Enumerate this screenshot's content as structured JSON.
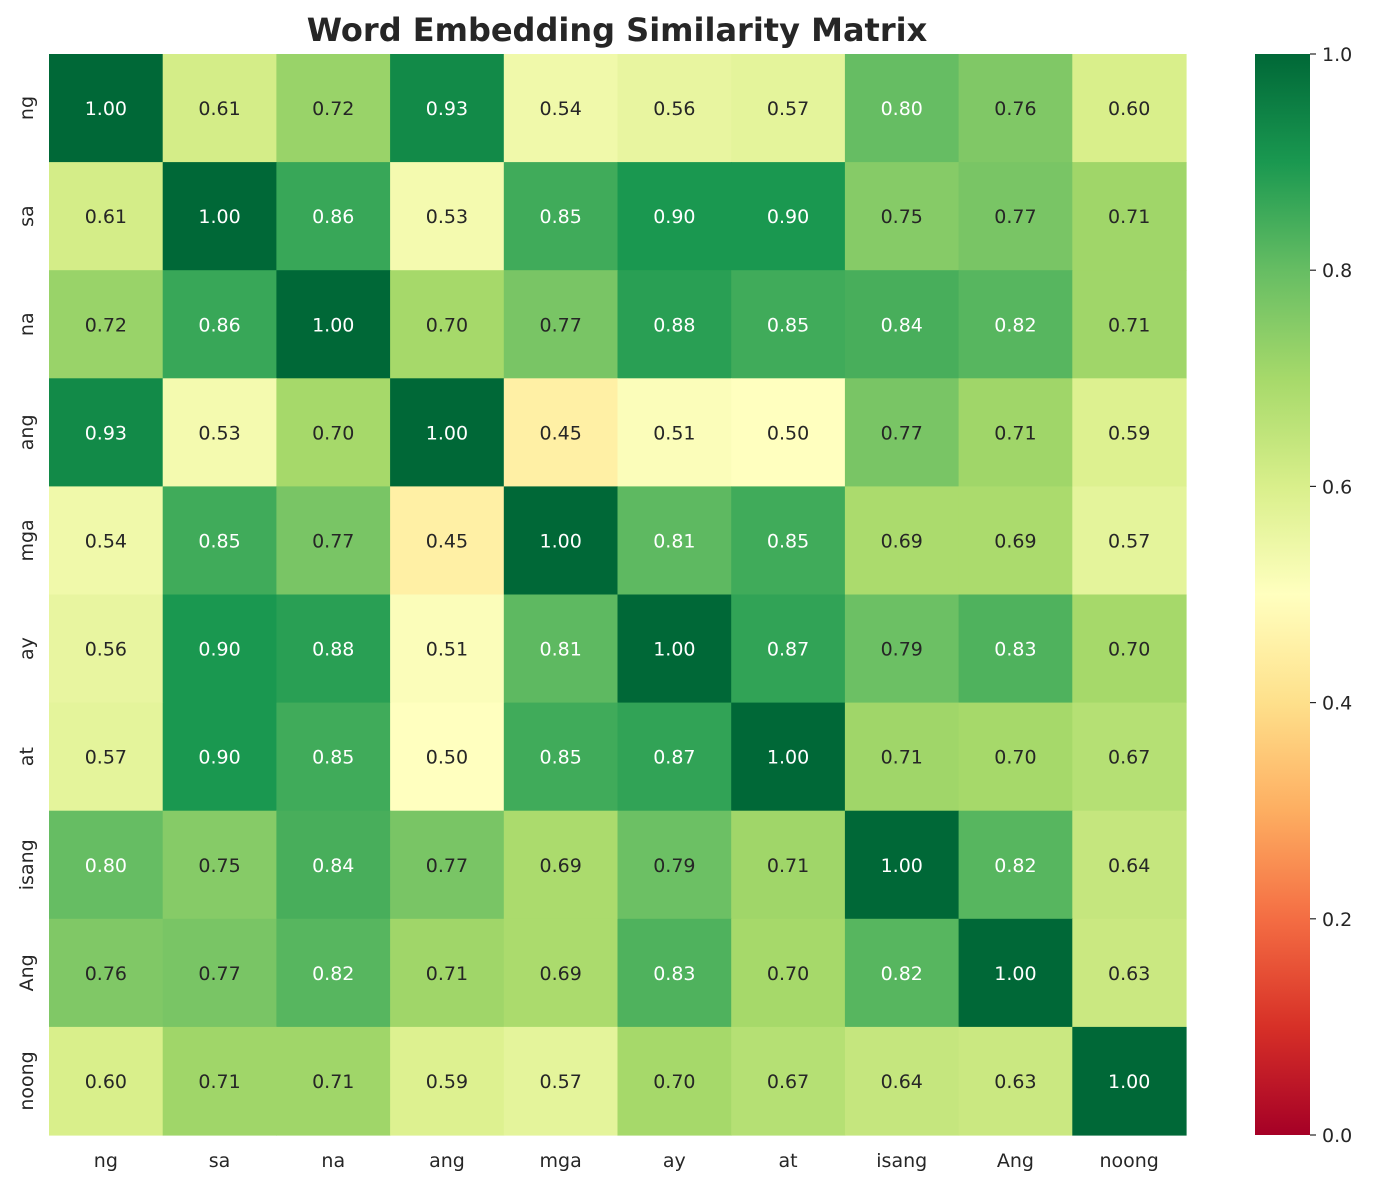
{
  "chart_data": {
    "type": "heatmap",
    "title": "Word Embedding Similarity Matrix",
    "xlabel": "",
    "ylabel": "",
    "x_categories": [
      "ng",
      "sa",
      "na",
      "ang",
      "mga",
      "ay",
      "at",
      "isang",
      "Ang",
      "noong"
    ],
    "y_categories": [
      "ng",
      "sa",
      "na",
      "ang",
      "mga",
      "ay",
      "at",
      "isang",
      "Ang",
      "noong"
    ],
    "values": [
      [
        1.0,
        0.61,
        0.72,
        0.93,
        0.54,
        0.56,
        0.57,
        0.8,
        0.76,
        0.6
      ],
      [
        0.61,
        1.0,
        0.86,
        0.53,
        0.85,
        0.9,
        0.9,
        0.75,
        0.77,
        0.71
      ],
      [
        0.72,
        0.86,
        1.0,
        0.7,
        0.77,
        0.88,
        0.85,
        0.84,
        0.82,
        0.71
      ],
      [
        0.93,
        0.53,
        0.7,
        1.0,
        0.45,
        0.51,
        0.5,
        0.77,
        0.71,
        0.59
      ],
      [
        0.54,
        0.85,
        0.77,
        0.45,
        1.0,
        0.81,
        0.85,
        0.69,
        0.69,
        0.57
      ],
      [
        0.56,
        0.9,
        0.88,
        0.51,
        0.81,
        1.0,
        0.87,
        0.79,
        0.83,
        0.7
      ],
      [
        0.57,
        0.9,
        0.85,
        0.5,
        0.85,
        0.87,
        1.0,
        0.71,
        0.7,
        0.67
      ],
      [
        0.8,
        0.75,
        0.84,
        0.77,
        0.69,
        0.79,
        0.71,
        1.0,
        0.82,
        0.64
      ],
      [
        0.76,
        0.77,
        0.82,
        0.71,
        0.69,
        0.83,
        0.7,
        0.82,
        1.0,
        0.63
      ],
      [
        0.6,
        0.71,
        0.71,
        0.59,
        0.57,
        0.7,
        0.67,
        0.64,
        0.63,
        1.0
      ]
    ],
    "value_format": "0.00",
    "colormap": "RdYlGn",
    "vmin": 0.0,
    "vmax": 1.0,
    "colorbar_ticks": [
      "0.0",
      "0.2",
      "0.4",
      "0.6",
      "0.8",
      "1.0"
    ],
    "grid": false,
    "colorbar_position": "right"
  }
}
